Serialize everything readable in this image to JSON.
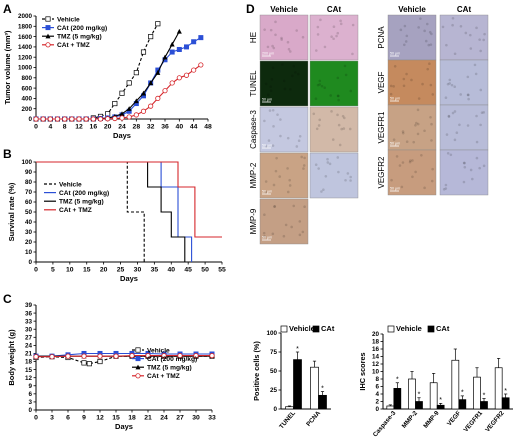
{
  "chart_data": [
    {
      "panel": "A",
      "type": "line",
      "xlabel": "Days",
      "ylabel": "Tumor volume (mm³)",
      "xticks": [
        0,
        4,
        8,
        12,
        16,
        20,
        24,
        28,
        32,
        36,
        40,
        44,
        48
      ],
      "yticks": [
        0,
        200,
        400,
        600,
        800,
        1000,
        1200,
        1400,
        1600,
        1800,
        2000
      ],
      "xlim": [
        0,
        48
      ],
      "ylim": [
        0,
        2000
      ],
      "legend_position": "top-left",
      "series": [
        {
          "name": "Vehicle",
          "color": "#000000",
          "dash": "3,2",
          "marker": "square-open",
          "x": [
            0,
            2,
            4,
            6,
            8,
            10,
            12,
            14,
            16,
            18,
            20,
            22,
            24,
            26,
            28,
            30,
            32,
            34
          ],
          "y": [
            0,
            0,
            0,
            0,
            0,
            0,
            0,
            0,
            20,
            50,
            100,
            300,
            500,
            700,
            900,
            1300,
            1600,
            1850
          ]
        },
        {
          "name": "CAt (200 mg/kg)",
          "color": "#2b4fd6",
          "dash": "",
          "marker": "square",
          "x": [
            0,
            2,
            4,
            6,
            8,
            10,
            12,
            14,
            16,
            18,
            20,
            22,
            24,
            26,
            28,
            30,
            32,
            34,
            36,
            38,
            40,
            42,
            44,
            46
          ],
          "y": [
            0,
            0,
            0,
            0,
            0,
            0,
            0,
            0,
            0,
            10,
            20,
            40,
            80,
            150,
            300,
            450,
            700,
            950,
            1150,
            1300,
            1350,
            1400,
            1500,
            1580
          ]
        },
        {
          "name": "TMZ (5 mg/kg)",
          "color": "#000000",
          "dash": "",
          "marker": "triangle",
          "x": [
            0,
            2,
            4,
            6,
            8,
            10,
            12,
            14,
            16,
            18,
            20,
            22,
            24,
            26,
            28,
            30,
            32,
            34,
            36,
            38,
            40
          ],
          "y": [
            0,
            0,
            0,
            0,
            0,
            0,
            0,
            0,
            0,
            10,
            20,
            50,
            100,
            200,
            350,
            500,
            700,
            900,
            1200,
            1450,
            1700
          ]
        },
        {
          "name": "CAt + TMZ",
          "color": "#d6262b",
          "dash": "",
          "marker": "circle-open",
          "x": [
            0,
            2,
            4,
            6,
            8,
            10,
            12,
            14,
            16,
            18,
            20,
            22,
            24,
            26,
            28,
            30,
            32,
            34,
            36,
            38,
            40,
            42,
            44,
            46
          ],
          "y": [
            0,
            0,
            0,
            0,
            0,
            0,
            0,
            0,
            0,
            0,
            5,
            10,
            20,
            40,
            80,
            150,
            250,
            400,
            550,
            700,
            800,
            850,
            950,
            1050
          ]
        }
      ]
    },
    {
      "panel": "B",
      "type": "line",
      "subtype": "step",
      "xlabel": "Days",
      "ylabel": "Survival rate (%)",
      "xticks": [
        0,
        5,
        10,
        15,
        20,
        25,
        30,
        35,
        40,
        45,
        50,
        55
      ],
      "yticks": [
        0,
        10,
        20,
        30,
        40,
        50,
        60,
        70,
        80,
        90,
        100
      ],
      "xlim": [
        0,
        55
      ],
      "ylim": [
        0,
        100
      ],
      "legend_position": "left",
      "series": [
        {
          "name": "Vehicle",
          "color": "#000000",
          "dash": "3,2",
          "x": [
            0,
            27,
            27,
            32,
            32
          ],
          "y": [
            100,
            100,
            50,
            50,
            0
          ]
        },
        {
          "name": "CAt (200 mg/kg)",
          "color": "#2b4fd6",
          "dash": "",
          "x": [
            0,
            37,
            37,
            42,
            42,
            46,
            46
          ],
          "y": [
            100,
            100,
            75,
            75,
            25,
            25,
            0
          ]
        },
        {
          "name": "TMZ (5 mg/kg)",
          "color": "#000000",
          "dash": "",
          "x": [
            0,
            33,
            33,
            37,
            37,
            40,
            40,
            44,
            44
          ],
          "y": [
            100,
            100,
            75,
            75,
            50,
            50,
            25,
            25,
            0
          ]
        },
        {
          "name": "CAt + TMZ",
          "color": "#d6262b",
          "dash": "",
          "x": [
            0,
            42,
            42,
            47,
            47,
            52,
            52,
            55
          ],
          "y": [
            100,
            100,
            75,
            75,
            25,
            25,
            25,
            25
          ]
        }
      ]
    },
    {
      "panel": "C",
      "type": "line",
      "xlabel": "Days",
      "ylabel": "Body weight (g)",
      "xticks": [
        0,
        3,
        6,
        9,
        12,
        15,
        18,
        21,
        24,
        27,
        30,
        33
      ],
      "yticks": [
        0,
        3,
        6,
        9,
        12,
        15,
        18,
        21,
        24,
        27,
        30,
        33,
        36,
        39
      ],
      "xlim": [
        0,
        33
      ],
      "ylim": [
        0,
        39
      ],
      "legend_position": "bottom-right",
      "series": [
        {
          "name": "Vehicle",
          "color": "#000000",
          "dash": "3,2",
          "marker": "square-open",
          "x": [
            0,
            3,
            6,
            9,
            10,
            12,
            15,
            18,
            21,
            24,
            27,
            30,
            33
          ],
          "y": [
            19.5,
            19.8,
            19.5,
            17.5,
            17.2,
            18,
            20,
            20,
            20,
            20,
            20,
            20,
            20
          ]
        },
        {
          "name": "CAt (200 mg/kg)",
          "color": "#2b4fd6",
          "dash": "",
          "marker": "square",
          "x": [
            0,
            3,
            6,
            9,
            12,
            15,
            18,
            21,
            24,
            27,
            30,
            33
          ],
          "y": [
            20,
            20,
            20.5,
            21,
            21,
            21,
            21,
            21,
            20.8,
            20.8,
            20.8,
            20.8
          ]
        },
        {
          "name": "TMZ (5 mg/kg)",
          "color": "#000000",
          "dash": "",
          "marker": "triangle",
          "x": [
            0,
            3,
            6,
            9,
            12,
            15,
            18,
            21,
            24,
            27,
            30,
            33
          ],
          "y": [
            20,
            20,
            20,
            20,
            20,
            20,
            20,
            20,
            20,
            20,
            20,
            20
          ]
        },
        {
          "name": "CAt + TMZ",
          "color": "#d6262b",
          "dash": "",
          "marker": "circle-open",
          "x": [
            0,
            3,
            6,
            9,
            12,
            15,
            18,
            21,
            24,
            27,
            30,
            33
          ],
          "y": [
            19.8,
            19.8,
            20,
            20,
            20,
            20,
            20.2,
            20.2,
            20.2,
            20.2,
            20.2,
            20.2
          ]
        }
      ]
    },
    {
      "panel": "D-left",
      "type": "bar",
      "ylabel": "Positive cells (%)",
      "categories": [
        "TUNEL",
        "PCNA"
      ],
      "yticks": [
        0,
        25,
        50,
        75,
        100
      ],
      "ylim": [
        0,
        100
      ],
      "legend_position": "top",
      "series": [
        {
          "name": "Vehicle",
          "color": "#ffffff",
          "values": [
            3,
            55
          ],
          "errors": [
            1,
            8
          ]
        },
        {
          "name": "CAt",
          "color": "#000000",
          "values": [
            65,
            18
          ],
          "errors": [
            10,
            5
          ]
        }
      ],
      "significance": [
        "*",
        "*"
      ]
    },
    {
      "panel": "D-right",
      "type": "bar",
      "ylabel": "IHC scores",
      "categories": [
        "Caspase-3",
        "MMP-2",
        "MMP-9",
        "VEGF",
        "VEGFR1",
        "VEGFR2"
      ],
      "yticks": [
        0,
        2,
        4,
        6,
        8,
        10,
        12,
        14,
        16,
        18,
        20
      ],
      "ylim": [
        0,
        20
      ],
      "legend_position": "top",
      "series": [
        {
          "name": "Vehicle",
          "color": "#ffffff",
          "values": [
            0.8,
            8,
            7,
            13,
            8.5,
            11
          ],
          "errors": [
            0.3,
            2,
            2.5,
            3,
            2.5,
            2.5
          ]
        },
        {
          "name": "CAt",
          "color": "#000000",
          "values": [
            5.5,
            2,
            1,
            2.5,
            2,
            3
          ],
          "errors": [
            1.5,
            1,
            0.5,
            1,
            0.8,
            1
          ]
        }
      ],
      "significance": [
        "*",
        "*",
        "*",
        "*",
        "*",
        "*"
      ]
    }
  ],
  "panel_labels": [
    "A",
    "B",
    "C",
    "D"
  ],
  "micrographs": {
    "left_headers": [
      "Vehicle",
      "CAt"
    ],
    "right_headers": [
      "Vehicle",
      "CAt"
    ],
    "left_rows": [
      {
        "label": "HE",
        "vehicle_color": "#d9a9c9",
        "cat_color": "#dcb1cf",
        "scale": "200 µm"
      },
      {
        "label": "TUNEL",
        "vehicle_color": "#0d2a0d",
        "cat_color": "#1f8a1f",
        "scale": "50 µm"
      },
      {
        "label": "Caspase-3",
        "vehicle_color": "#c4c8e0",
        "cat_color": "#d2b9a8",
        "scale": "50 µm"
      },
      {
        "label": "MMP-2",
        "vehicle_color": "#c9a385",
        "cat_color": "#bfc5de",
        "scale": "50 µm"
      },
      {
        "label": "MMP-9",
        "vehicle_color": "#c49f85",
        "cat_color": null,
        "scale": "50 µm"
      }
    ],
    "right_rows": [
      {
        "label": "PCNA",
        "vehicle_color": "#a6a2c0",
        "cat_color": "#b7b5d2",
        "scale": "50 µm"
      },
      {
        "label": "VEGF",
        "vehicle_color": "#c58a5e",
        "cat_color": "#b7bcd8",
        "scale": "50 µm"
      },
      {
        "label": "VEGFR1",
        "vehicle_color": "#c7a285",
        "cat_color": "#b8bcd8",
        "scale": "50 µm"
      },
      {
        "label": "VEGFR2",
        "vehicle_color": "#c79c7e",
        "cat_color": "#b6b8d8",
        "scale": "50 µm"
      }
    ]
  }
}
